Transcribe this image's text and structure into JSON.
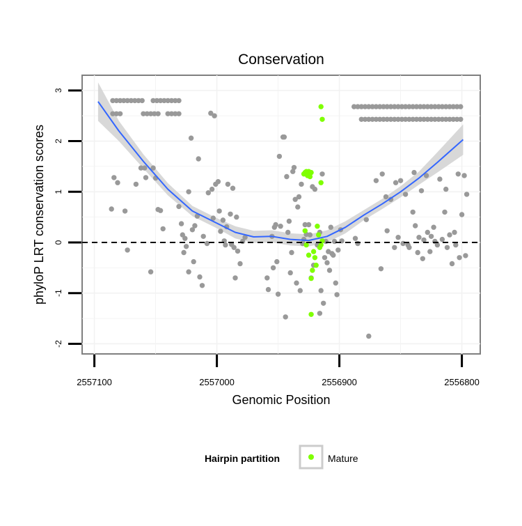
{
  "chart_data": {
    "type": "scatter",
    "title": "Conservation",
    "xlabel": "Genomic Position",
    "ylabel": "phyloP LRT conservation scores",
    "x_reversed": true,
    "xlim": [
      2557110,
      2556785
    ],
    "ylim": [
      -2.2,
      3.3
    ],
    "x_ticks": [
      2557100,
      2557000,
      2556900,
      2556800
    ],
    "x_tick_labels": [
      "2557100",
      "2557000",
      "2556900",
      "2556800"
    ],
    "y_ticks": [
      -2,
      -1,
      0,
      1,
      2,
      3
    ],
    "y_tick_labels": [
      "-2",
      "-1",
      "0",
      "1",
      "2",
      "3"
    ],
    "hline": 0,
    "grid": true,
    "legend": {
      "title": "Hairpin partition",
      "position": "bottom",
      "entries": [
        {
          "label": "Mature",
          "color": "#7fff00"
        }
      ]
    },
    "colors": {
      "other": "#999999",
      "mature": "#7fff00",
      "smooth": "#3366ff",
      "band": "#d4d4d4"
    },
    "series": [
      {
        "group": "other",
        "points": [
          [
            2557085,
            2.8
          ],
          [
            2557082,
            2.8
          ],
          [
            2557079,
            2.8
          ],
          [
            2557076,
            2.8
          ],
          [
            2557073,
            2.8
          ],
          [
            2557070,
            2.8
          ],
          [
            2557067,
            2.8
          ],
          [
            2557064,
            2.8
          ],
          [
            2557061,
            2.8
          ],
          [
            2557052,
            2.8
          ],
          [
            2557049,
            2.8
          ],
          [
            2557046,
            2.8
          ],
          [
            2557043,
            2.8
          ],
          [
            2557040,
            2.8
          ],
          [
            2557037,
            2.8
          ],
          [
            2557034,
            2.8
          ],
          [
            2557031,
            2.8
          ],
          [
            2557085,
            2.54
          ],
          [
            2557082,
            2.54
          ],
          [
            2557079,
            2.54
          ],
          [
            2557060,
            2.54
          ],
          [
            2557057,
            2.54
          ],
          [
            2557054,
            2.54
          ],
          [
            2557051,
            2.54
          ],
          [
            2557048,
            2.54
          ],
          [
            2557040,
            2.54
          ],
          [
            2557037,
            2.54
          ],
          [
            2557034,
            2.54
          ],
          [
            2557031,
            2.54
          ],
          [
            2557084,
            1.28
          ],
          [
            2557081,
            1.18
          ],
          [
            2557086,
            0.66
          ],
          [
            2557075,
            0.62
          ],
          [
            2557073,
            -0.15
          ],
          [
            2557066,
            1.15
          ],
          [
            2557062,
            1.47
          ],
          [
            2557059,
            1.47
          ],
          [
            2557058,
            1.28
          ],
          [
            2557054,
            -0.58
          ],
          [
            2557052,
            1.47
          ],
          [
            2557050,
            1.27
          ],
          [
            2557048,
            0.65
          ],
          [
            2557046,
            0.63
          ],
          [
            2557044,
            0.27
          ],
          [
            2557031,
            0.71
          ],
          [
            2557029,
            0.37
          ],
          [
            2557028,
            0.15
          ],
          [
            2557027,
            -0.2
          ],
          [
            2557026,
            0.08
          ],
          [
            2557025,
            -0.08
          ],
          [
            2557023,
            -0.58
          ],
          [
            2557023,
            1.0
          ],
          [
            2557021,
            2.06
          ],
          [
            2557020,
            0.25
          ],
          [
            2557019,
            -0.38
          ],
          [
            2557018,
            0.33
          ],
          [
            2557016,
            0.52
          ],
          [
            2557015,
            1.65
          ],
          [
            2557014,
            -0.68
          ],
          [
            2557012,
            -0.85
          ],
          [
            2557011,
            0.12
          ],
          [
            2557008,
            -0.02
          ],
          [
            2557007,
            0.98
          ],
          [
            2557005,
            2.55
          ],
          [
            2557004,
            1.05
          ],
          [
            2557003,
            0.48
          ],
          [
            2557002,
            2.5
          ],
          [
            2557001,
            1.15
          ],
          [
            2556999,
            1.2
          ],
          [
            2556998,
            0.62
          ],
          [
            2556997,
            0.22
          ],
          [
            2556995,
            0.44
          ],
          [
            2556994,
            0.03
          ],
          [
            2556993,
            -0.05
          ],
          [
            2556992,
            0.31
          ],
          [
            2556991,
            1.15
          ],
          [
            2556989,
            0.56
          ],
          [
            2556988,
            -0.04
          ],
          [
            2556987,
            1.07
          ],
          [
            2556986,
            -0.1
          ],
          [
            2556985,
            -0.7
          ],
          [
            2556984,
            0.5
          ],
          [
            2556983,
            -0.17
          ],
          [
            2556981,
            -0.42
          ],
          [
            2556979,
            0.02
          ],
          [
            2556977,
            0.1
          ],
          [
            2556959,
            -0.7
          ],
          [
            2556958,
            -0.93
          ],
          [
            2556955,
            0.12
          ],
          [
            2556954,
            -0.5
          ],
          [
            2556953,
            0.3
          ],
          [
            2556952,
            0.35
          ],
          [
            2556951,
            -0.38
          ],
          [
            2556950,
            -1.02
          ],
          [
            2556949,
            1.7
          ],
          [
            2556948,
            0.32
          ],
          [
            2556946,
            2.08
          ],
          [
            2556945,
            2.08
          ],
          [
            2556944,
            -1.47
          ],
          [
            2556943,
            1.3
          ],
          [
            2556942,
            0.2
          ],
          [
            2556941,
            0.42
          ],
          [
            2556940,
            -0.6
          ],
          [
            2556939,
            -0.2
          ],
          [
            2556938,
            1.4
          ],
          [
            2556937,
            1.48
          ],
          [
            2556936,
            0.85
          ],
          [
            2556935,
            -0.8
          ],
          [
            2556934,
            0.7
          ],
          [
            2556933,
            0.9
          ],
          [
            2556932,
            -0.95
          ],
          [
            2556931,
            1.15
          ],
          [
            2556930,
            -0.02
          ],
          [
            2556929,
            0.06
          ],
          [
            2556928,
            0.35
          ],
          [
            2556927,
            0.16
          ],
          [
            2556925,
            0.35
          ],
          [
            2556924,
            0.15
          ],
          [
            2556923,
            -0.7
          ],
          [
            2556922,
            1.1
          ],
          [
            2556921,
            -0.45
          ],
          [
            2556920,
            1.05
          ],
          [
            2556918,
            -0.05
          ],
          [
            2556916,
            0.2
          ],
          [
            2556916,
            -1.4
          ],
          [
            2556915,
            -0.95
          ],
          [
            2556914,
            1.35
          ],
          [
            2556913,
            -1.2
          ],
          [
            2556912,
            -0.3
          ],
          [
            2556911,
            0.02
          ],
          [
            2556910,
            -0.4
          ],
          [
            2556909,
            -0.18
          ],
          [
            2556908,
            -0.55
          ],
          [
            2556907,
            0.3
          ],
          [
            2556906,
            -0.22
          ],
          [
            2556905,
            -0.25
          ],
          [
            2556904,
            0.02
          ],
          [
            2556903,
            -0.8
          ],
          [
            2556902,
            -1.03
          ],
          [
            2556901,
            -0.15
          ],
          [
            2556899,
            0.25
          ],
          [
            2556898,
            0.03
          ],
          [
            2556888,
            2.68
          ],
          [
            2556885,
            2.68
          ],
          [
            2556882,
            2.68
          ],
          [
            2556879,
            2.68
          ],
          [
            2556876,
            2.68
          ],
          [
            2556873,
            2.68
          ],
          [
            2556870,
            2.68
          ],
          [
            2556867,
            2.68
          ],
          [
            2556864,
            2.68
          ],
          [
            2556861,
            2.68
          ],
          [
            2556858,
            2.68
          ],
          [
            2556855,
            2.68
          ],
          [
            2556852,
            2.68
          ],
          [
            2556849,
            2.68
          ],
          [
            2556846,
            2.68
          ],
          [
            2556843,
            2.68
          ],
          [
            2556840,
            2.68
          ],
          [
            2556837,
            2.68
          ],
          [
            2556834,
            2.68
          ],
          [
            2556831,
            2.68
          ],
          [
            2556828,
            2.68
          ],
          [
            2556825,
            2.68
          ],
          [
            2556822,
            2.68
          ],
          [
            2556819,
            2.68
          ],
          [
            2556816,
            2.68
          ],
          [
            2556813,
            2.68
          ],
          [
            2556810,
            2.68
          ],
          [
            2556807,
            2.68
          ],
          [
            2556804,
            2.68
          ],
          [
            2556801,
            2.68
          ],
          [
            2556882,
            2.43
          ],
          [
            2556879,
            2.43
          ],
          [
            2556876,
            2.43
          ],
          [
            2556873,
            2.43
          ],
          [
            2556870,
            2.43
          ],
          [
            2556867,
            2.43
          ],
          [
            2556864,
            2.43
          ],
          [
            2556861,
            2.43
          ],
          [
            2556858,
            2.43
          ],
          [
            2556855,
            2.43
          ],
          [
            2556852,
            2.43
          ],
          [
            2556849,
            2.43
          ],
          [
            2556846,
            2.43
          ],
          [
            2556843,
            2.43
          ],
          [
            2556840,
            2.43
          ],
          [
            2556837,
            2.43
          ],
          [
            2556834,
            2.43
          ],
          [
            2556831,
            2.43
          ],
          [
            2556828,
            2.43
          ],
          [
            2556825,
            2.43
          ],
          [
            2556822,
            2.43
          ],
          [
            2556819,
            2.43
          ],
          [
            2556816,
            2.43
          ],
          [
            2556813,
            2.43
          ],
          [
            2556810,
            2.43
          ],
          [
            2556807,
            2.43
          ],
          [
            2556804,
            2.43
          ],
          [
            2556801,
            2.43
          ],
          [
            2556887,
            0.08
          ],
          [
            2556885,
            -0.02
          ],
          [
            2556878,
            0.45
          ],
          [
            2556876,
            -1.85
          ],
          [
            2556870,
            1.22
          ],
          [
            2556866,
            -0.52
          ],
          [
            2556865,
            1.35
          ],
          [
            2556862,
            0.9
          ],
          [
            2556861,
            0.23
          ],
          [
            2556858,
            0.85
          ],
          [
            2556855,
            -0.1
          ],
          [
            2556854,
            1.18
          ],
          [
            2556852,
            0.1
          ],
          [
            2556850,
            1.22
          ],
          [
            2556848,
            -0.02
          ],
          [
            2556846,
            0.95
          ],
          [
            2556844,
            -0.05
          ],
          [
            2556843,
            -0.1
          ],
          [
            2556840,
            0.6
          ],
          [
            2556839,
            1.38
          ],
          [
            2556838,
            0.33
          ],
          [
            2556836,
            -0.2
          ],
          [
            2556835,
            0.1
          ],
          [
            2556833,
            1.02
          ],
          [
            2556832,
            -0.32
          ],
          [
            2556831,
            0.05
          ],
          [
            2556829,
            1.32
          ],
          [
            2556828,
            0.2
          ],
          [
            2556826,
            -0.18
          ],
          [
            2556825,
            0.12
          ],
          [
            2556823,
            0.3
          ],
          [
            2556822,
            0.02
          ],
          [
            2556820,
            -0.05
          ],
          [
            2556818,
            1.25
          ],
          [
            2556816,
            0.06
          ],
          [
            2556814,
            0.6
          ],
          [
            2556813,
            1.05
          ],
          [
            2556812,
            -0.1
          ],
          [
            2556810,
            0.15
          ],
          [
            2556808,
            -0.42
          ],
          [
            2556806,
            0.2
          ],
          [
            2556805,
            -0.05
          ],
          [
            2556803,
            1.35
          ],
          [
            2556802,
            -0.3
          ],
          [
            2556800,
            0.55
          ],
          [
            2556798,
            1.32
          ],
          [
            2556797,
            -0.26
          ],
          [
            2556796,
            0.95
          ]
        ]
      },
      {
        "group": "mature",
        "name": "Mature",
        "points": [
          [
            2556929,
            1.35
          ],
          [
            2556928,
            1.38
          ],
          [
            2556927,
            1.4
          ],
          [
            2556926,
            1.32
          ],
          [
            2556925,
            1.4
          ],
          [
            2556924,
            1.3
          ],
          [
            2556923,
            1.38
          ],
          [
            2556928,
            0.23
          ],
          [
            2556927,
            -0.05
          ],
          [
            2556925,
            -0.25
          ],
          [
            2556923,
            -0.71
          ],
          [
            2556922,
            -0.55
          ],
          [
            2556921,
            -0.18
          ],
          [
            2556920,
            -0.3
          ],
          [
            2556919,
            -0.45
          ],
          [
            2556918,
            0.32
          ],
          [
            2556917,
            0.15
          ],
          [
            2556916,
            -0.1
          ],
          [
            2556915,
            -0.05
          ],
          [
            2556914,
            0.03
          ],
          [
            2556923,
            -1.42
          ],
          [
            2556915,
            1.18
          ],
          [
            2556915,
            2.68
          ],
          [
            2556914,
            2.43
          ]
        ]
      }
    ],
    "smooth": {
      "x": [
        2557097,
        2557080,
        2557060,
        2557040,
        2557020,
        2557000,
        2556985,
        2556970,
        2556955,
        2556940,
        2556925,
        2556910,
        2556895,
        2556880,
        2556865,
        2556850,
        2556835,
        2556820,
        2556799
      ],
      "y": [
        2.78,
        2.2,
        1.6,
        1.05,
        0.62,
        0.38,
        0.2,
        0.11,
        0.12,
        0.06,
        0.04,
        0.12,
        0.3,
        0.54,
        0.76,
        1.0,
        1.27,
        1.58,
        2.03
      ],
      "band": [
        0.38,
        0.2,
        0.14,
        0.12,
        0.1,
        0.1,
        0.12,
        0.12,
        0.12,
        0.12,
        0.12,
        0.12,
        0.12,
        0.1,
        0.1,
        0.11,
        0.13,
        0.2,
        0.3
      ]
    }
  }
}
